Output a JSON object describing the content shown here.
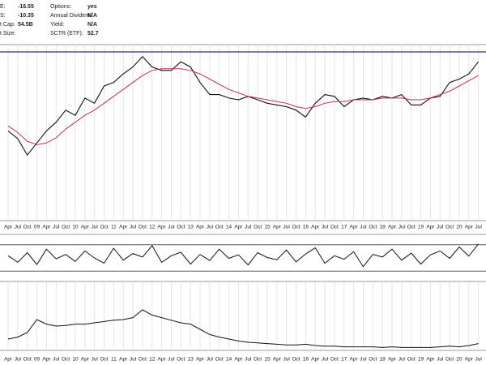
{
  "header": {
    "left": [
      {
        "label": "E:",
        "value": "-16.55"
      },
      {
        "label": "S:",
        "value": "-10.35"
      },
      {
        "label": "t Cap:",
        "value": "54.5B"
      },
      {
        "label": "t Size:"
      }
    ],
    "right": [
      {
        "label": "Options:",
        "value": "yes"
      },
      {
        "label": "Annual Dividend:",
        "value": "N/A"
      },
      {
        "label": "Yield:",
        "value": "N/A"
      },
      {
        "label": "SCTR (ETF):",
        "value": "52.7"
      }
    ]
  },
  "chart_data": [
    {
      "type": "line",
      "grid": true,
      "categories": [
        "Apr",
        "Jul",
        "Oct",
        "09",
        "Apr",
        "Jul",
        "Oct",
        "10",
        "Apr",
        "Jul",
        "Oct",
        "11",
        "Apr",
        "Jul",
        "Oct",
        "12",
        "Apr",
        "Jul",
        "Oct",
        "13",
        "Apr",
        "Jul",
        "Oct",
        "14",
        "Apr",
        "Jul",
        "Oct",
        "15",
        "Apr",
        "Jul",
        "Oct",
        "16",
        "Apr",
        "Jul",
        "Oct",
        "17",
        "Apr",
        "Jul",
        "Oct",
        "18",
        "Apr",
        "Jul",
        "Oct",
        "19",
        "Apr",
        "Jul",
        "Oct",
        "20",
        "Apr",
        "Jul"
      ],
      "ylim": [
        0,
        100
      ],
      "hline": 96.7,
      "hline_color": "#2a2aa0",
      "series": [
        {
          "color": "#111111",
          "values": [
            51,
            46.5,
            37,
            44,
            51,
            56,
            63,
            60,
            70,
            67,
            77,
            79,
            84,
            88,
            94,
            88,
            86,
            86,
            91,
            88,
            79,
            72,
            72,
            70,
            69,
            71,
            69,
            67,
            66,
            65,
            63,
            59,
            67,
            72,
            71,
            65,
            69,
            70,
            69,
            71,
            70,
            72,
            66,
            66,
            70,
            71,
            79,
            81,
            84,
            91
          ]
        },
        {
          "color": "#c0304a",
          "values": [
            54,
            50,
            45,
            43,
            44,
            47,
            52,
            56,
            60,
            63,
            67,
            71,
            75,
            79,
            83,
            86,
            87,
            87,
            87,
            86,
            84,
            81,
            78,
            75,
            73,
            71,
            70,
            69,
            68,
            67,
            65,
            64,
            65,
            67,
            68,
            68,
            69,
            69,
            69,
            70,
            70,
            70,
            69,
            69,
            70,
            72,
            74,
            77,
            80,
            83
          ]
        }
      ]
    },
    {
      "type": "line",
      "ylim": [
        0,
        100
      ],
      "hlines": [
        80,
        20
      ],
      "color": "#111111",
      "values": [
        55,
        40,
        62,
        35,
        70,
        48,
        58,
        42,
        66,
        50,
        38,
        72,
        45,
        60,
        52,
        78,
        40,
        55,
        63,
        36,
        58,
        44,
        70,
        49,
        57,
        34,
        62,
        51,
        46,
        68,
        41,
        59,
        73,
        38,
        55,
        47,
        64,
        30,
        58,
        52,
        70,
        45,
        61,
        36,
        57,
        66,
        49,
        75,
        54,
        82
      ]
    },
    {
      "type": "line",
      "grid": true,
      "ylim": [
        0,
        100
      ],
      "color": "#111111",
      "categories": [
        "Apr",
        "Jul",
        "Oct",
        "09",
        "Apr",
        "Jul",
        "Oct",
        "10",
        "Apr",
        "Jul",
        "Oct",
        "11",
        "Apr",
        "Jul",
        "Oct",
        "12",
        "Apr",
        "Jul",
        "Oct",
        "13",
        "Apr",
        "Jul",
        "Oct",
        "14",
        "Apr",
        "Jul",
        "Oct",
        "15",
        "Apr",
        "Jul",
        "Oct",
        "16",
        "Apr",
        "Jul",
        "Oct",
        "17",
        "Apr",
        "Jul",
        "Oct",
        "18",
        "Apr",
        "Jul",
        "Oct",
        "19",
        "Apr",
        "Jul",
        "Oct",
        "20",
        "Apr",
        "Jul"
      ],
      "values": [
        15,
        18,
        25,
        45,
        38,
        35,
        36,
        38,
        38,
        40,
        42,
        44,
        45,
        48,
        60,
        52,
        48,
        44,
        40,
        38,
        30,
        22,
        18,
        15,
        12,
        10,
        9,
        8,
        7,
        6,
        6,
        7,
        5,
        4,
        4,
        3,
        3,
        3,
        3,
        2,
        3,
        2,
        2,
        2,
        2,
        3,
        4,
        3,
        5,
        8
      ]
    }
  ]
}
